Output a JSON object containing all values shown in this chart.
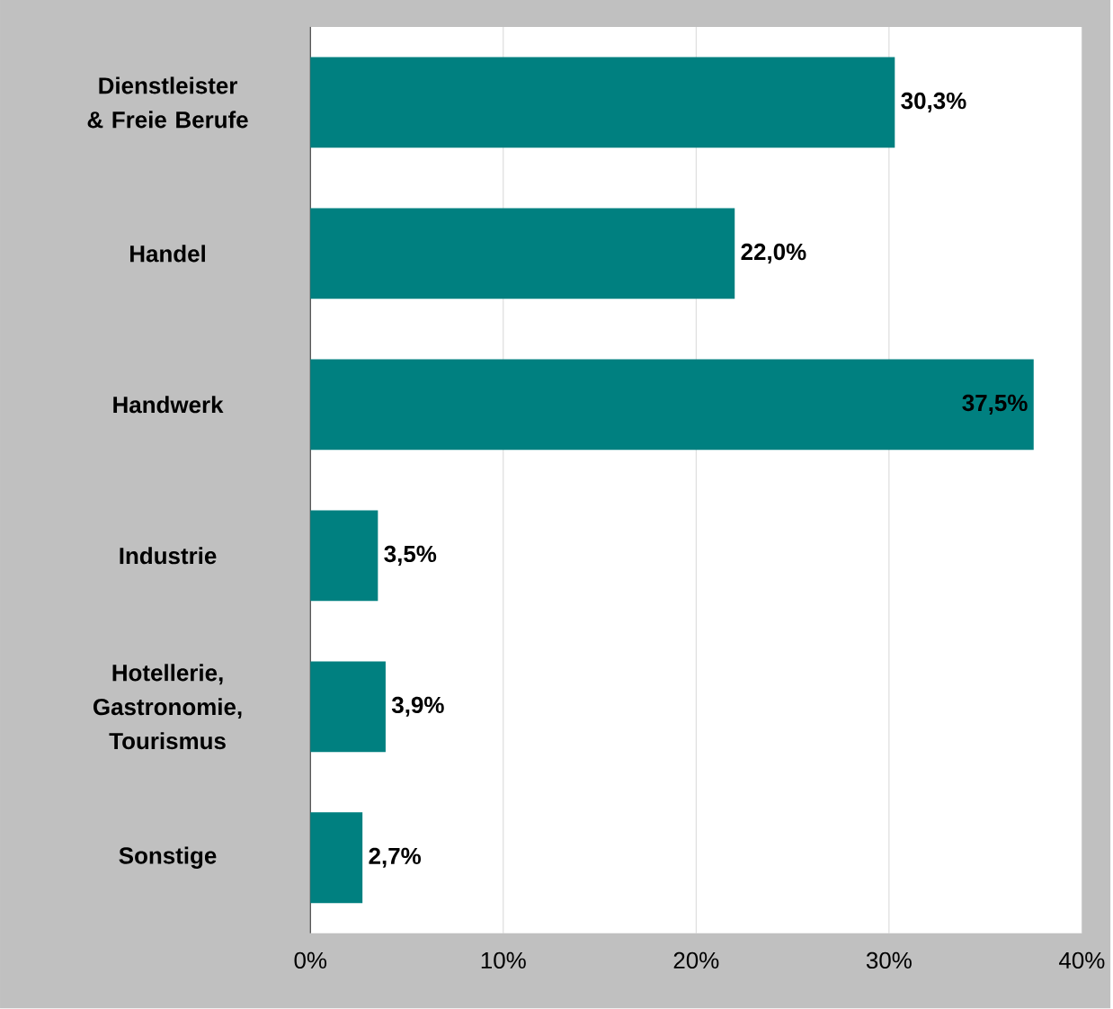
{
  "chart_data": {
    "type": "bar",
    "orientation": "horizontal",
    "categories": [
      "Dienstleister & Freie Berufe",
      "Handel",
      "Handwerk",
      "Industrie",
      "Hotellerie, Gastronomie, Tourismus",
      "Sonstige"
    ],
    "values": [
      30.3,
      22.0,
      37.5,
      3.5,
      3.9,
      2.7
    ],
    "value_labels": [
      "30,3%",
      "22,0%",
      "37,5%",
      "3,5%",
      "3,9%",
      "2,7%"
    ],
    "color": "#008080",
    "xlim": [
      0,
      40
    ],
    "xticks": [
      {
        "value": 0,
        "label": "0%"
      },
      {
        "value": 10,
        "label": "10%"
      },
      {
        "value": 20,
        "label": "20%"
      },
      {
        "value": 30,
        "label": "30%"
      },
      {
        "value": 40,
        "label": "40%"
      }
    ],
    "grid": "x"
  }
}
